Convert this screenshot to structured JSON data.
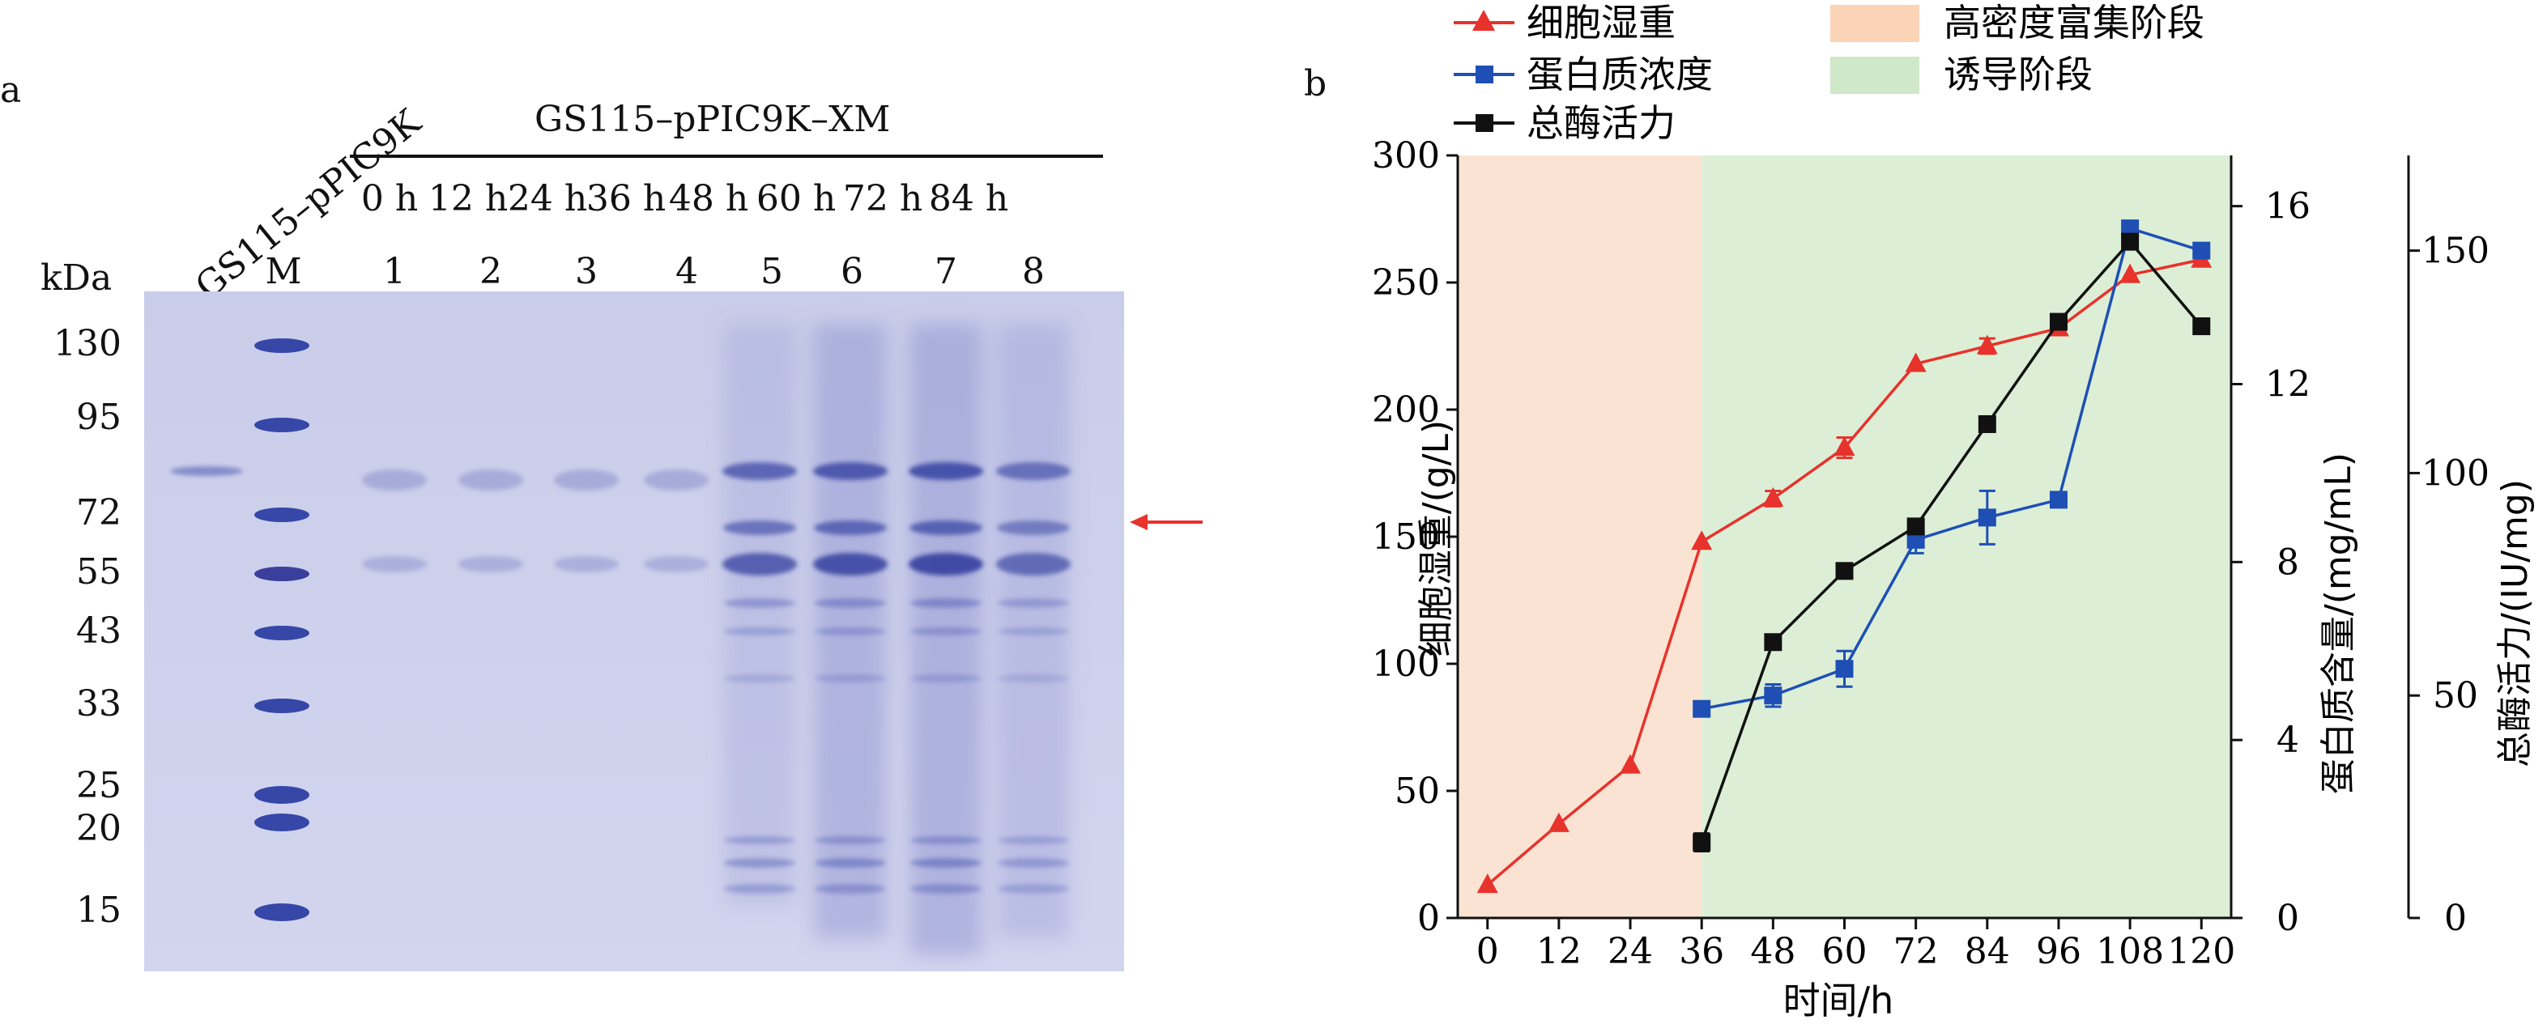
{
  "panel_a": {
    "letter": "a",
    "control_label": "GS115–pPIC9K",
    "group_label": "GS115–pPIC9K–XM",
    "times": [
      "0 h",
      "12 h",
      "24 h",
      "36 h",
      "48 h",
      "60 h",
      "72 h",
      "84 h"
    ],
    "lane_labels": [
      "M",
      "1",
      "2",
      "3",
      "4",
      "5",
      "6",
      "7",
      "8"
    ],
    "kda_title": "kDa",
    "kda_marks": [
      "130",
      "95",
      "72",
      "55",
      "43",
      "33",
      "25",
      "20",
      "15"
    ],
    "arrow_color": "#e8322c"
  },
  "panel_b": {
    "letter": "b",
    "legend": {
      "s1": "细胞湿重",
      "s2": "蛋白质浓度",
      "s3": "总酶活力",
      "bg1": "高密度富集阶段",
      "bg2": "诱导阶段"
    },
    "xlabel": "时间/h",
    "ylabel_left": "细胞湿重/(g/L)",
    "ylabel_mid": "蛋白质含量/(mg/mL)",
    "ylabel_right": "总酶活力/(IU/mg)"
  },
  "chart_data": {
    "type": "line",
    "x": [
      0,
      12,
      24,
      36,
      48,
      60,
      72,
      84,
      96,
      108,
      120
    ],
    "x_ticks": [
      "0",
      "12",
      "24",
      "36",
      "48",
      "60",
      "72",
      "84",
      "96",
      "108",
      "120"
    ],
    "xlabel": "时间/h",
    "phases": [
      {
        "name": "高密度富集阶段",
        "x_range": [
          -5,
          36
        ],
        "color": "#fbe3d3"
      },
      {
        "name": "诱导阶段",
        "x_range": [
          36,
          125
        ],
        "color": "#dcefd6"
      }
    ],
    "series": [
      {
        "name": "细胞湿重",
        "axis": "left",
        "color": "#e8322c",
        "marker": "triangle",
        "x": [
          0,
          12,
          24,
          36,
          48,
          60,
          72,
          84,
          96,
          108,
          120
        ],
        "values": [
          13,
          37,
          60,
          148,
          165,
          185,
          218,
          225,
          232,
          253,
          259
        ],
        "errors": [
          0,
          0,
          0,
          0,
          3,
          4,
          0,
          3,
          0,
          0,
          0
        ]
      },
      {
        "name": "蛋白质浓度",
        "axis": "mid",
        "color": "#1f4fb5",
        "marker": "square",
        "x": [
          36,
          48,
          60,
          72,
          84,
          96,
          108,
          120
        ],
        "values": [
          4.7,
          5.0,
          5.6,
          8.5,
          9.0,
          9.4,
          15.5,
          15.0
        ],
        "errors": [
          0,
          0.25,
          0.4,
          0.3,
          0.6,
          0,
          0,
          0
        ]
      },
      {
        "name": "总酶活力",
        "axis": "right",
        "color": "#111111",
        "marker": "square",
        "x": [
          36,
          48,
          60,
          72,
          84,
          96,
          108,
          120
        ],
        "values": [
          17,
          62,
          78,
          88,
          111,
          134,
          152,
          133
        ],
        "errors": [
          2,
          0,
          1.5,
          1.5,
          1.5,
          1.5,
          1.5,
          1.5
        ]
      }
    ],
    "y_left": {
      "label": "细胞湿重/(g/L)",
      "ticks": [
        0,
        50,
        100,
        150,
        200,
        250,
        300
      ],
      "lim": [
        0,
        300
      ]
    },
    "y_mid": {
      "label": "蛋白质含量/(mg/mL)",
      "ticks": [
        0,
        4,
        8,
        12,
        16
      ],
      "lim": [
        0,
        17.14
      ]
    },
    "y_right": {
      "label": "总酶活力/(IU/mg)",
      "ticks": [
        0,
        50,
        100,
        150
      ],
      "lim": [
        0,
        171.4
      ]
    },
    "xlim": [
      -5,
      125
    ],
    "legend_position": "top"
  }
}
